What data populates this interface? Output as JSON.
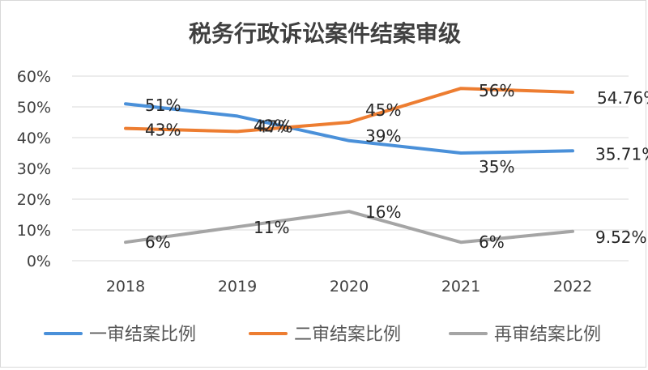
{
  "chart_data": {
    "type": "line",
    "title": "税务行政诉讼案件结案审级",
    "categories": [
      "2018",
      "2019",
      "2020",
      "2021",
      "2022"
    ],
    "ylim": [
      0,
      60
    ],
    "yticks": [
      "0%",
      "10%",
      "20%",
      "30%",
      "40%",
      "50%",
      "60%"
    ],
    "grid": true,
    "legend_position": "bottom",
    "series": [
      {
        "name": "一审结案比例",
        "color": "#4a90d9",
        "values": [
          51,
          47,
          39,
          35,
          35.71
        ],
        "labels": [
          "51%",
          "47%",
          "39%",
          "35%",
          "35.71%"
        ]
      },
      {
        "name": "二审结案比例",
        "color": "#ed7d31",
        "values": [
          43,
          42,
          45,
          56,
          54.76
        ],
        "labels": [
          "43%",
          "42%",
          "45%",
          "56%",
          "54.76%"
        ]
      },
      {
        "name": "再审结案比例",
        "color": "#a5a5a5",
        "values": [
          6,
          11,
          16,
          6,
          9.52
        ],
        "labels": [
          "6%",
          "11%",
          "16%",
          "6%",
          "9.52%"
        ]
      }
    ]
  }
}
